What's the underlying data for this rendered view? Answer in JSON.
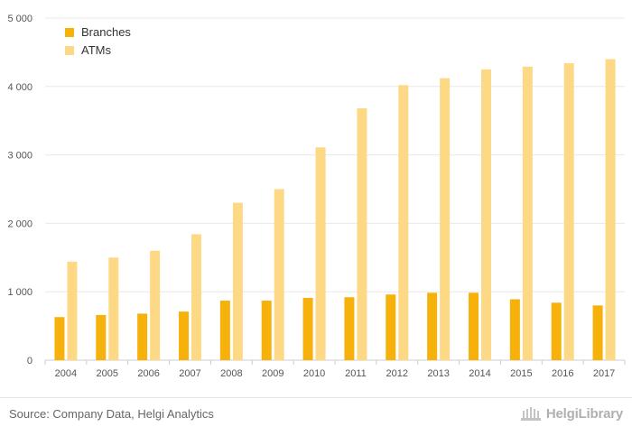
{
  "colors": {
    "branches": "#f6b10b",
    "atms": "#fdd985",
    "grid": "#e8e8e8",
    "axis_text": "#555555"
  },
  "chart_data": {
    "type": "bar",
    "categories": [
      "2004",
      "2005",
      "2006",
      "2007",
      "2008",
      "2009",
      "2010",
      "2011",
      "2012",
      "2013",
      "2014",
      "2015",
      "2016",
      "2017"
    ],
    "series": [
      {
        "name": "Branches",
        "values": [
          630,
          660,
          680,
          710,
          870,
          870,
          910,
          920,
          960,
          985,
          985,
          890,
          840,
          800
        ]
      },
      {
        "name": "ATMs",
        "values": [
          1440,
          1500,
          1600,
          1840,
          2300,
          2500,
          3110,
          3680,
          4020,
          4120,
          4250,
          4290,
          4340,
          4400
        ]
      }
    ],
    "y_ticks": [
      "0",
      "1 000",
      "2 000",
      "3 000",
      "4 000",
      "5 000"
    ],
    "ylim": [
      0,
      5000
    ],
    "grid": true,
    "legend_position": "top-left"
  },
  "footer": {
    "source": "Source: Company Data, Helgi Analytics",
    "logo_text": "HelgiLibrary"
  }
}
